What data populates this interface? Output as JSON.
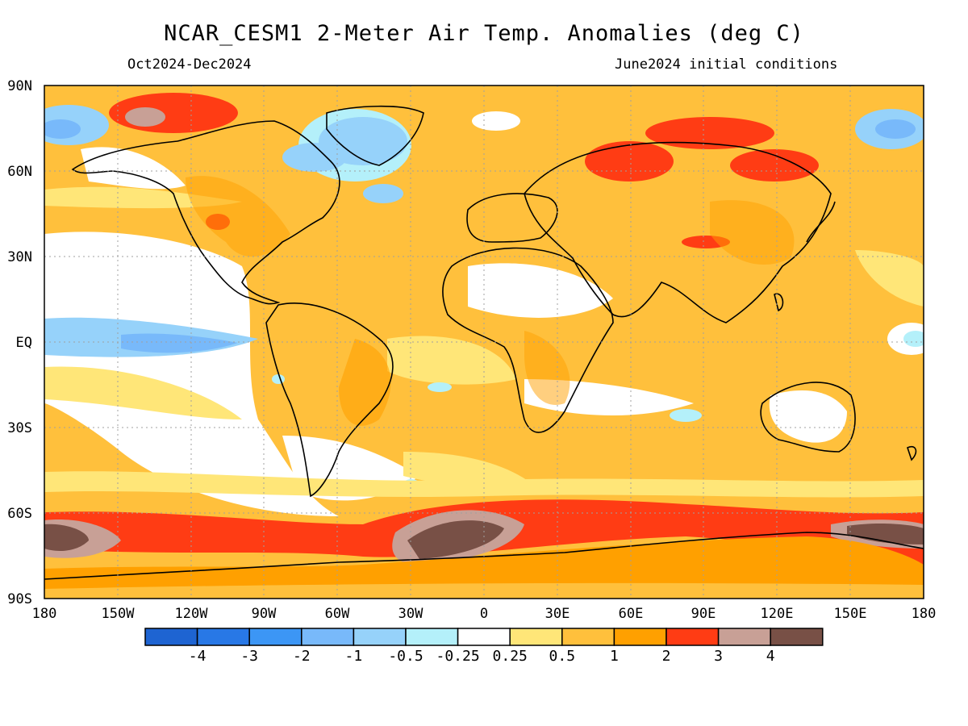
{
  "title": "NCAR_CESM1 2-Meter Air Temp. Anomalies (deg C)",
  "subtitle_left": "Oct2024-Dec2024",
  "subtitle_right": "June2024 initial conditions",
  "lat_labels": [
    "90N",
    "60N",
    "30N",
    "EQ",
    "30S",
    "60S",
    "90S"
  ],
  "lon_labels": [
    "180",
    "150W",
    "120W",
    "90W",
    "60W",
    "30W",
    "0",
    "30E",
    "60E",
    "90E",
    "120E",
    "150E",
    "180"
  ],
  "colorbar": {
    "colors": [
      "#1e64d2",
      "#2878e6",
      "#3c96f5",
      "#78b9fa",
      "#96d2fa",
      "#b4f0fa",
      "#ffffff",
      "#ffe678",
      "#ffc03c",
      "#ffa000",
      "#ff3c14",
      "#c8a096",
      "#785046"
    ],
    "labels": [
      "-4",
      "-3",
      "-2",
      "-1",
      "-0.5",
      "-0.25",
      "0.25",
      "0.5",
      "1",
      "2",
      "3",
      "4"
    ]
  },
  "colors": {
    "ocean_base": "#ffc03c",
    "land_base": "#ffc03c",
    "frame": "#000000"
  }
}
